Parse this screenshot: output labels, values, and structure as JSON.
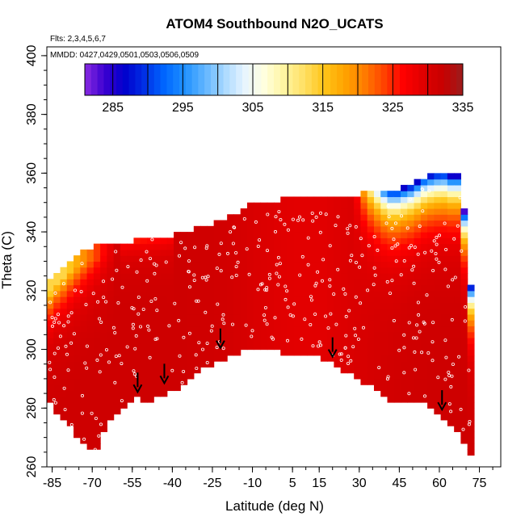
{
  "chart_data": {
    "type": "heatmap",
    "title": "ATOM4 Southbound N2O_UCATS",
    "annotations": [
      "Flts: 2,3,4,5,6,7",
      "MMDD: 0427,0429,0501,0503,0506,0509"
    ],
    "xlabel": "Latitude (deg N)",
    "ylabel": "Theta (C)",
    "xlim": [
      -87,
      83
    ],
    "ylim": [
      260,
      403
    ],
    "x_ticks": [
      -85,
      -70,
      -55,
      -40,
      -25,
      -10,
      5,
      15,
      30,
      45,
      60,
      75
    ],
    "y_ticks": [
      260,
      280,
      300,
      320,
      340,
      360,
      380,
      400
    ],
    "colorbar": {
      "min": 281,
      "max": 335,
      "tick_values": [
        285,
        295,
        305,
        315,
        325,
        335
      ],
      "colors": [
        "#8a2be2",
        "#3a00d0",
        "#0000cc",
        "#0030e6",
        "#0066ff",
        "#1e90ff",
        "#5fb4ff",
        "#a8d8ff",
        "#e6f4ff",
        "#ffffe0",
        "#fff5a0",
        "#ffe066",
        "#ffc61a",
        "#ffa500",
        "#ff7f00",
        "#ff4500",
        "#ff0000",
        "#e00000",
        "#c80000",
        "#9b1c1c"
      ]
    },
    "surface_boundary": [
      [
        -87,
        285
      ],
      [
        -85,
        280
      ],
      [
        -80,
        275
      ],
      [
        -75,
        270
      ],
      [
        -72,
        266
      ],
      [
        -68,
        265
      ],
      [
        -65,
        275
      ],
      [
        -60,
        279
      ],
      [
        -57,
        281
      ],
      [
        -55,
        283
      ],
      [
        -52,
        284
      ],
      [
        -50,
        282
      ],
      [
        -45,
        284
      ],
      [
        -42,
        285
      ],
      [
        -38,
        287
      ],
      [
        -33,
        291
      ],
      [
        -27,
        294
      ],
      [
        -20,
        296
      ],
      [
        -15,
        299
      ],
      [
        -10,
        301
      ],
      [
        -5,
        300
      ],
      [
        0,
        299
      ],
      [
        5,
        299
      ],
      [
        10,
        298
      ],
      [
        15,
        297
      ],
      [
        20,
        295
      ],
      [
        25,
        292
      ],
      [
        30,
        290
      ],
      [
        35,
        287
      ],
      [
        40,
        284
      ],
      [
        45,
        281
      ],
      [
        50,
        282
      ],
      [
        55,
        281
      ],
      [
        60,
        277
      ],
      [
        65,
        273
      ],
      [
        70,
        268
      ],
      [
        72,
        264
      ]
    ],
    "top_boundary": [
      [
        -87,
        322
      ],
      [
        -84,
        326
      ],
      [
        -78,
        331
      ],
      [
        -72,
        334
      ],
      [
        -65,
        336
      ],
      [
        -55,
        337
      ],
      [
        -45,
        338
      ],
      [
        -35,
        340
      ],
      [
        -25,
        343
      ],
      [
        -15,
        347
      ],
      [
        -10,
        350
      ],
      [
        0,
        351
      ],
      [
        10,
        352
      ],
      [
        20,
        352
      ],
      [
        30,
        353
      ],
      [
        40,
        353
      ],
      [
        50,
        356
      ],
      [
        55,
        359
      ],
      [
        60,
        360
      ],
      [
        65,
        360
      ],
      [
        68,
        360
      ],
      [
        70,
        340
      ],
      [
        72,
        320
      ],
      [
        73,
        305
      ],
      [
        73,
        300
      ]
    ],
    "arrows": [
      [
        -53,
        287
      ],
      [
        -43,
        290
      ],
      [
        -22,
        302
      ],
      [
        20,
        299
      ],
      [
        61,
        281
      ]
    ]
  }
}
